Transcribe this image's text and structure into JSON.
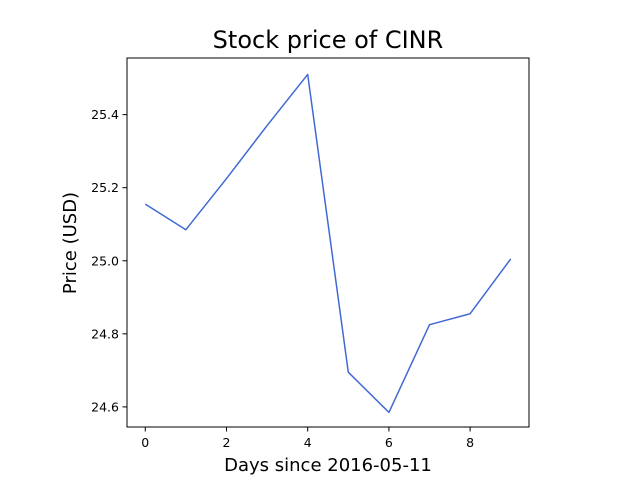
{
  "chart_data": {
    "type": "line",
    "title": "Stock price of CINR",
    "xlabel": "Days since 2016-05-11",
    "ylabel": "Price (USD)",
    "xlim": [
      -0.45,
      9.45
    ],
    "ylim": [
      24.545,
      25.555
    ],
    "x_ticks": [
      0,
      2,
      4,
      6,
      8
    ],
    "x_tick_labels": [
      "0",
      "2",
      "4",
      "6",
      "8"
    ],
    "y_ticks": [
      24.6,
      24.8,
      25.0,
      25.2,
      25.4
    ],
    "y_tick_labels": [
      "24.6",
      "24.8",
      "25.0",
      "25.2",
      "25.4"
    ],
    "grid": false,
    "series": [
      {
        "color": "#4169d2",
        "x": [
          0,
          1,
          2,
          3,
          4,
          5,
          6,
          7,
          8,
          9
        ],
        "values": [
          25.155,
          25.085,
          25.225,
          25.37,
          25.51,
          24.695,
          24.585,
          24.825,
          24.855,
          25.005
        ]
      }
    ]
  }
}
